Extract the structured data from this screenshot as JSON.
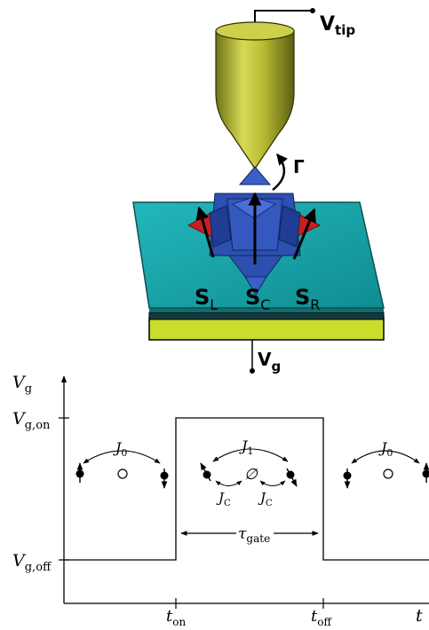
{
  "top_diagram": {
    "tip_voltage": {
      "base": "V",
      "sub": "tip"
    },
    "gate_voltage": {
      "base": "V",
      "sub": "g"
    },
    "torque": "Γ",
    "spins": [
      {
        "base": "S",
        "sub": "L"
      },
      {
        "base": "S",
        "sub": "C"
      },
      {
        "base": "S",
        "sub": "R"
      }
    ],
    "colors": {
      "tip": "#bfc23a",
      "substrate_top": "#1aa2a6",
      "substrate_edge": "#127a7e",
      "dielectric": "#15383a",
      "gate": "#c9dd2c",
      "molecule_blue": "#2c4fb0",
      "molecule_red": "#c82020"
    }
  },
  "pulse_plot": {
    "y_axis_label": {
      "base": "V",
      "sub": "g"
    },
    "x_axis_label": "t",
    "y_ticks": [
      {
        "base": "V",
        "sub": "g,on"
      },
      {
        "base": "V",
        "sub": "g,off"
      }
    ],
    "x_ticks": [
      {
        "base": "t",
        "sub": "on"
      },
      {
        "base": "t",
        "sub": "off"
      }
    ],
    "couplings": {
      "j0": {
        "base": "J",
        "sub": "0"
      },
      "j1": {
        "base": "J",
        "sub": "1"
      },
      "jc": {
        "base": "J",
        "sub": "C"
      }
    },
    "empty_symbol": "∅",
    "duration": {
      "base": "τ",
      "sub": "gate"
    }
  }
}
